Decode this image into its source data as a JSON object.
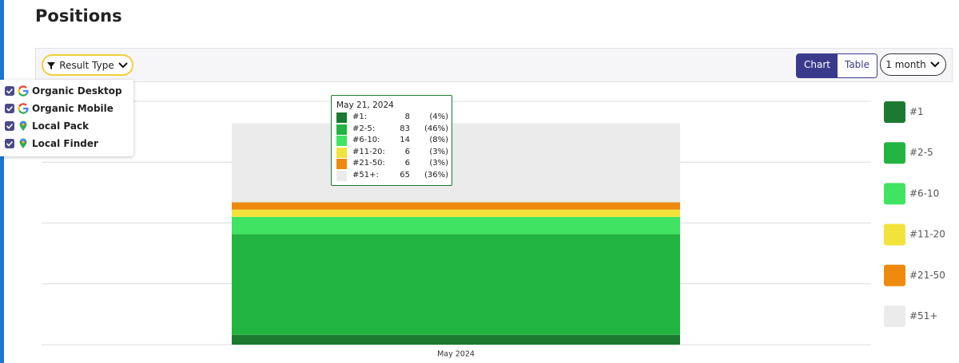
{
  "header": {
    "title": "Positions"
  },
  "toolbar": {
    "filter_button": "Result Type",
    "view_toggle": [
      "Chart",
      "Table"
    ],
    "active_view": 0,
    "period_button": "1 month"
  },
  "result_type_menu": [
    {
      "label": "Organic Desktop",
      "checked": true,
      "icon": "google"
    },
    {
      "label": "Organic Mobile",
      "checked": true,
      "icon": "google"
    },
    {
      "label": "Local Pack",
      "checked": true,
      "icon": "maps"
    },
    {
      "label": "Local Finder",
      "checked": true,
      "icon": "maps"
    }
  ],
  "tooltip": {
    "title": "May 21, 2024",
    "rows": [
      {
        "label": "#1:",
        "percent": "(4%)"
      },
      {
        "label": "#2-5:",
        "percent": "(46%)"
      },
      {
        "label": "#6-10:",
        "percent": "(8%)"
      },
      {
        "label": "#11-20:",
        "percent": "(3%)"
      },
      {
        "label": "#21-50:",
        "percent": "(3%)"
      },
      {
        "label": "#51+:",
        "percent": "(36%)"
      }
    ]
  },
  "chart_data": {
    "type": "stacked_area",
    "categories": [
      "May 2024"
    ],
    "series": [
      {
        "name": "#1",
        "color": "#1b7a2f",
        "values": [
          8
        ]
      },
      {
        "name": "#2-5",
        "color": "#22b440",
        "values": [
          83
        ]
      },
      {
        "name": "#6-10",
        "color": "#40e462",
        "values": [
          14
        ]
      },
      {
        "name": "#11-20",
        "color": "#f2e33c",
        "values": [
          6
        ]
      },
      {
        "name": "#21-50",
        "color": "#ee8a0e",
        "values": [
          6
        ]
      },
      {
        "name": "#51+",
        "color": "#ebebeb",
        "values": [
          65
        ]
      }
    ],
    "ylim": [
      0,
      200
    ],
    "yticks": [
      0,
      50,
      100,
      150,
      200
    ],
    "grid": true,
    "legend": "right"
  }
}
